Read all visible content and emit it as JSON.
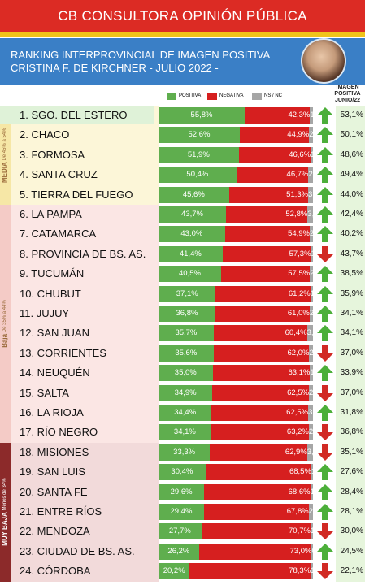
{
  "header": {
    "title": "CB CONSULTORA OPINIÓN PÚBLICA",
    "subtitle_line1": "RANKING INTERPROVINCIAL DE IMAGEN POSITIVA",
    "subtitle_line2": "CRISTINA F. DE KIRCHNER - JULIO 2022 -"
  },
  "legend": {
    "positiva": "POSITIVA",
    "negativa": "NEGATIVA",
    "nsnc": "NS / NC"
  },
  "column_header": [
    "IMAGEN",
    "POSITIVA",
    "JUNIO/22"
  ],
  "groups": [
    {
      "label_main": "MEDIA",
      "label_sub": "De 45% a 54%",
      "rows": [
        1,
        2,
        3,
        4,
        5
      ]
    },
    {
      "label_main": "Baja",
      "label_sub": "De 35% a 44%",
      "rows": [
        6,
        7,
        8,
        9,
        10,
        11,
        12,
        13,
        14,
        15,
        16,
        17
      ]
    },
    {
      "label_main": "MUY BAJA",
      "label_sub": "Menos de 34%",
      "rows": [
        18,
        19,
        20,
        21,
        22,
        23,
        24
      ]
    }
  ],
  "colors": {
    "positiva": "#5fae4e",
    "negativa": "#d61f1f",
    "nsnc": "#a6a6a6",
    "title_bg": "#dc2b24",
    "subtitle_bg": "#3a7fc6",
    "group_media": "#fcf6d8",
    "group_baja": "#fbe6e4",
    "group_muybaja": "#f2dada",
    "top_row": "#dff2d8",
    "arrow_up": "#4caf3a",
    "arrow_down": "#d12a24",
    "prev_col": "#e6f5dc"
  },
  "chart_data": {
    "type": "bar",
    "title": "RANKING INTERPROVINCIAL DE IMAGEN POSITIVA",
    "stacked": true,
    "orientation": "horizontal",
    "xlim": [
      0,
      100
    ],
    "categories": [
      "1. SGO. DEL ESTERO",
      "2. CHACO",
      "3. FORMOSA",
      "4. SANTA CRUZ",
      "5. TIERRA DEL FUEGO",
      "6. LA PAMPA",
      "7. CATAMARCA",
      "8. PROVINCIA DE BS. AS.",
      "9. TUCUMÁN",
      "10. CHUBUT",
      "11. JUJUY",
      "12. SAN JUAN",
      "13. CORRIENTES",
      "14. NEUQUÉN",
      "15. SALTA",
      "16. LA RIOJA",
      "17. RÍO NEGRO",
      "18. MISIONES",
      "19. SAN LUIS",
      "20. SANTA FE",
      "21. ENTRE RÍOS",
      "22. MENDOZA",
      "23. CIUDAD DE BS. AS.",
      "24. CÓRDOBA"
    ],
    "series": [
      {
        "name": "POSITIVA",
        "values": [
          55.8,
          52.6,
          51.9,
          50.4,
          45.6,
          43.7,
          43.0,
          41.4,
          40.5,
          37.1,
          36.8,
          35.7,
          35.6,
          35.0,
          34.9,
          34.4,
          34.1,
          33.3,
          30.4,
          29.6,
          29.4,
          27.7,
          26.2,
          20.2
        ],
        "labels": [
          "55,8%",
          "52,6%",
          "51,9%",
          "50,4%",
          "45,6%",
          "43,7%",
          "43,0%",
          "41,4%",
          "40,5%",
          "37,1%",
          "36,8%",
          "35,7%",
          "35,6%",
          "35,0%",
          "34,9%",
          "34,4%",
          "34,1%",
          "33,3%",
          "30,4%",
          "29,6%",
          "29,4%",
          "27,7%",
          "26,2%",
          "20,2%"
        ]
      },
      {
        "name": "NEGATIVA",
        "values": [
          42.3,
          44.9,
          46.6,
          46.7,
          51.3,
          52.8,
          54.9,
          57.3,
          57.5,
          61.2,
          61.0,
          60.4,
          62.0,
          63.1,
          62.5,
          62.5,
          63.2,
          62.9,
          68.5,
          68.6,
          67.8,
          70.7,
          73.0,
          78.3
        ],
        "labels": [
          "42,3%",
          "44,9%",
          "46,6%",
          "46,7%",
          "51,3%",
          "52,8%",
          "54,9%",
          "57,3%",
          "57,5%",
          "61,2%",
          "61,0%",
          "60,4%",
          "62,0%",
          "63,1%",
          "62,5%",
          "62,5%",
          "63,2%",
          "62,9%",
          "68,5%",
          "68,6%",
          "67,8%",
          "70,7%",
          "73,0%",
          "78,3%"
        ]
      },
      {
        "name": "NS / NC",
        "values": [
          1.9,
          2.5,
          1.5,
          2.9,
          3.1,
          3.5,
          2.1,
          1.3,
          2.0,
          1.7,
          2.2,
          3.9,
          2.4,
          1.9,
          2.6,
          3.1,
          2.7,
          3.8,
          1.1,
          1.8,
          2.8,
          1.6,
          0.8,
          1.5
        ],
        "labels": [
          "1,9",
          "2,5",
          "1,5",
          "2,9",
          "3,1",
          "3,5",
          "2,1",
          "1,3",
          "2,0",
          "1,7",
          "2,2",
          "3,9",
          "2,4",
          "1,9",
          "2,6",
          "3,1",
          "2,7",
          "3,8",
          "1,1",
          "1,8",
          "2,8",
          "1,6",
          "0,8",
          "1,5"
        ]
      }
    ],
    "prev_positiva_junio22": [
      53.1,
      50.1,
      48.6,
      49.4,
      44.0,
      42.4,
      40.2,
      43.7,
      38.5,
      35.9,
      34.1,
      34.1,
      37.0,
      33.9,
      37.0,
      31.8,
      36.8,
      35.1,
      27.6,
      28.4,
      28.1,
      30.0,
      24.5,
      22.1
    ],
    "prev_labels": [
      "53,1%",
      "50,1%",
      "48,6%",
      "49,4%",
      "44,0%",
      "42,4%",
      "40,2%",
      "43,7%",
      "38,5%",
      "35,9%",
      "34,1%",
      "34,1%",
      "37,0%",
      "33,9%",
      "37,0%",
      "31,8%",
      "36,8%",
      "35,1%",
      "27,6%",
      "28,4%",
      "28,1%",
      "30,0%",
      "24,5%",
      "22,1%"
    ],
    "trend": [
      "up",
      "up",
      "up",
      "up",
      "up",
      "up",
      "up",
      "down",
      "up",
      "up",
      "up",
      "up",
      "down",
      "up",
      "down",
      "up",
      "down",
      "down",
      "up",
      "up",
      "up",
      "down",
      "up",
      "down"
    ]
  }
}
